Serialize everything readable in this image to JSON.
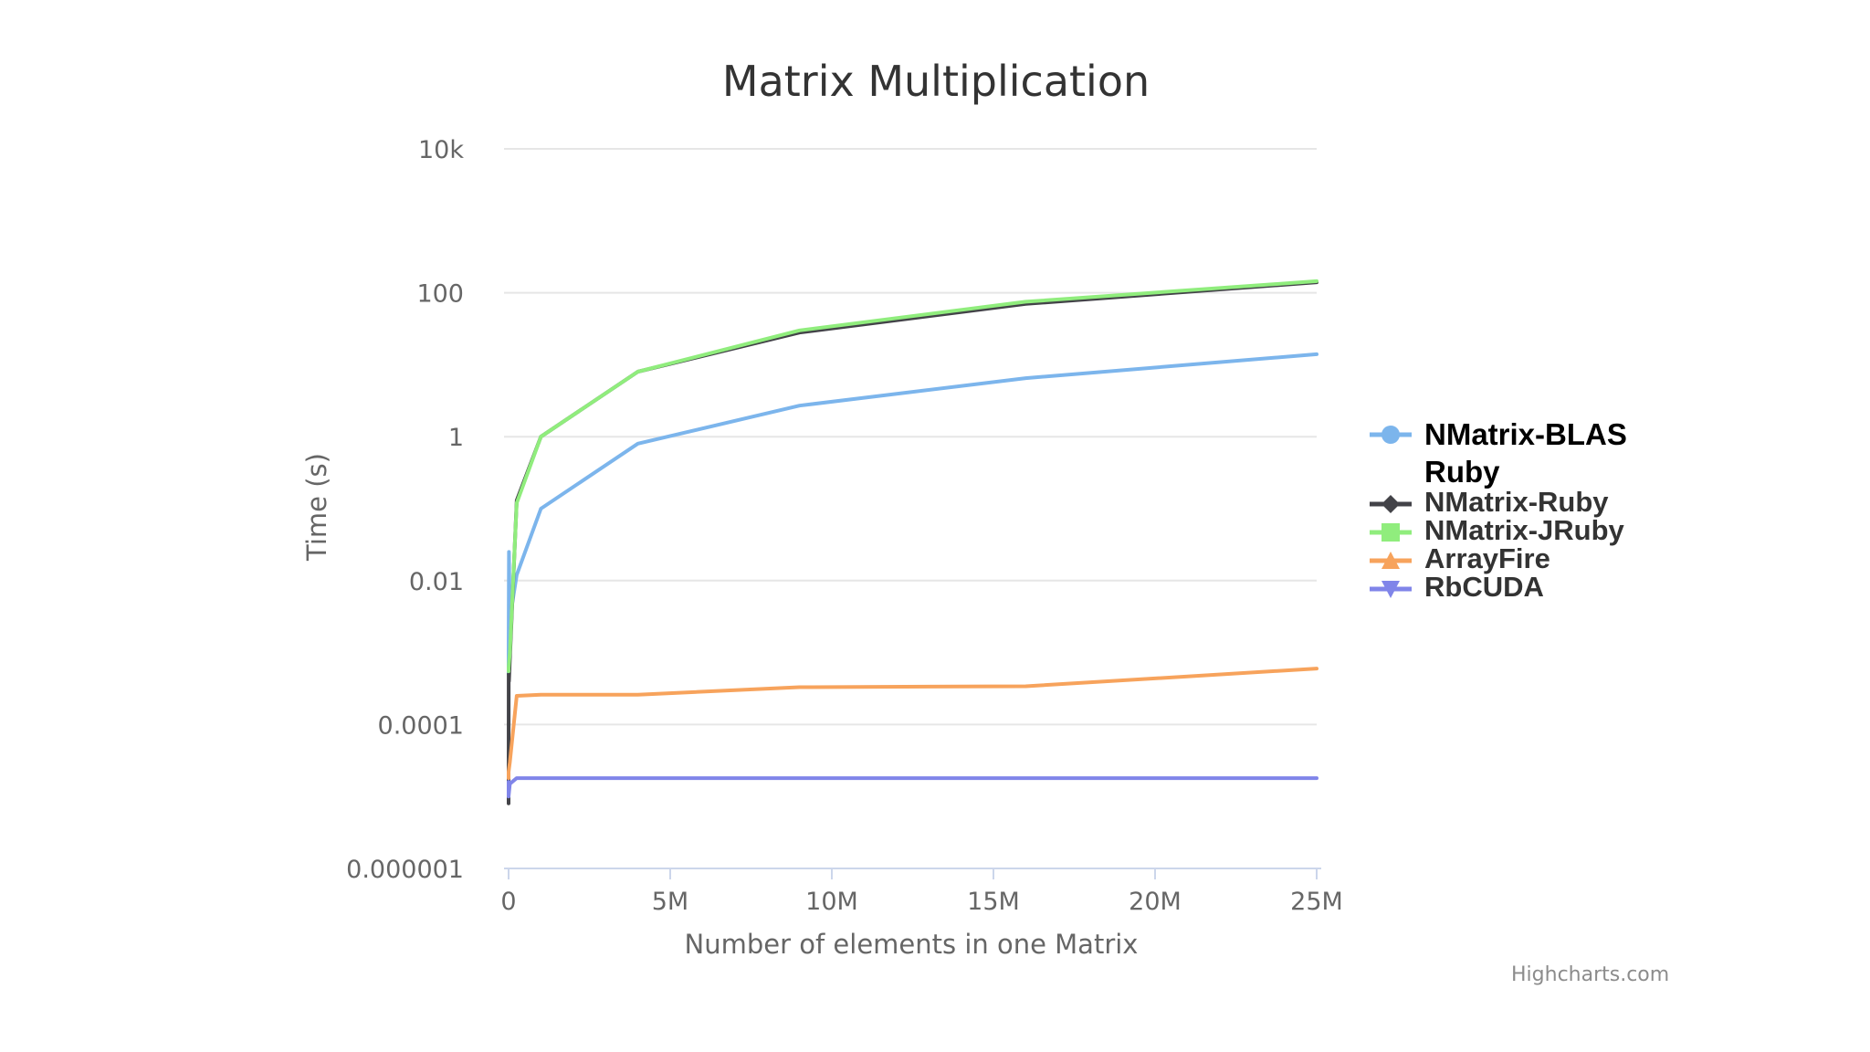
{
  "chart_data": {
    "type": "line",
    "title": "Matrix Multiplication",
    "xlabel": "Number of elements in one Matrix",
    "ylabel": "Time (s)",
    "yscale": "log",
    "ylim": [
      1e-06,
      10000
    ],
    "xlim": [
      0,
      25000000
    ],
    "y_ticks": [
      {
        "value": 10000,
        "label": "10k"
      },
      {
        "value": 100,
        "label": "100"
      },
      {
        "value": 1,
        "label": "1"
      },
      {
        "value": 0.01,
        "label": "0.01"
      },
      {
        "value": 0.0001,
        "label": "0.0001"
      },
      {
        "value": 1e-06,
        "label": "0.000001"
      }
    ],
    "x_ticks": [
      {
        "value": 0,
        "label": "0"
      },
      {
        "value": 5000000,
        "label": "5M"
      },
      {
        "value": 10000000,
        "label": "10M"
      },
      {
        "value": 15000000,
        "label": "15M"
      },
      {
        "value": 20000000,
        "label": "20M"
      },
      {
        "value": 25000000,
        "label": "25M"
      }
    ],
    "grid": true,
    "legend_position": "right",
    "series": [
      {
        "name": "NMatrix-BLAS Ruby",
        "color": "#7cb5ec",
        "marker": "circle",
        "points": [
          [
            4,
            0.0005
          ],
          [
            100,
            0.001
          ],
          [
            10000,
            0.025
          ],
          [
            40000,
            0.003
          ],
          [
            250000,
            0.012
          ],
          [
            1000000,
            0.1
          ],
          [
            4000000,
            0.8
          ],
          [
            9000000,
            2.7
          ],
          [
            16000000,
            6.5
          ],
          [
            25000000,
            14
          ]
        ]
      },
      {
        "name": "NMatrix-Ruby",
        "color": "#434348",
        "marker": "diamond",
        "points": [
          [
            4,
            8e-06
          ],
          [
            100,
            1e-05
          ],
          [
            2500,
            0.0005
          ],
          [
            10000,
            0.0004
          ],
          [
            40000,
            0.0008
          ],
          [
            250000,
            0.13
          ],
          [
            1000000,
            1.0
          ],
          [
            4000000,
            8
          ],
          [
            9000000,
            28
          ],
          [
            16000000,
            70
          ],
          [
            25000000,
            140
          ]
        ]
      },
      {
        "name": "NMatrix-JRuby",
        "color": "#90ed7d",
        "marker": "square",
        "points": [
          [
            4,
            0.00055
          ],
          [
            100,
            0.0006
          ],
          [
            10000,
            0.0007
          ],
          [
            40000,
            0.001
          ],
          [
            250000,
            0.12
          ],
          [
            1000000,
            1.0
          ],
          [
            4000000,
            8
          ],
          [
            9000000,
            30
          ],
          [
            16000000,
            75
          ],
          [
            25000000,
            145
          ]
        ]
      },
      {
        "name": "ArrayFire",
        "color": "#f7a35c",
        "marker": "triangle",
        "points": [
          [
            4,
            1.8e-05
          ],
          [
            100,
            2.2e-05
          ],
          [
            40000,
            3e-05
          ],
          [
            250000,
            0.00025
          ],
          [
            1000000,
            0.00026
          ],
          [
            4000000,
            0.00026
          ],
          [
            9000000,
            0.00033
          ],
          [
            16000000,
            0.00034
          ],
          [
            25000000,
            0.0006
          ]
        ]
      },
      {
        "name": "RbCUDA",
        "color": "#8085e9",
        "marker": "triangle-down",
        "points": [
          [
            4,
            1.6e-05
          ],
          [
            100,
            1e-05
          ],
          [
            40000,
            1.5e-05
          ],
          [
            250000,
            1.8e-05
          ],
          [
            1000000,
            1.8e-05
          ],
          [
            4000000,
            1.8e-05
          ],
          [
            9000000,
            1.8e-05
          ],
          [
            16000000,
            1.8e-05
          ],
          [
            25000000,
            1.8e-05
          ]
        ]
      }
    ],
    "legend_labels": [
      "NMatrix-BLAS Ruby",
      "NMatrix-Ruby",
      "NMatrix-JRuby",
      "ArrayFire",
      "RbCUDA"
    ]
  },
  "legend": {
    "first_line": "NMatrix-BLAS",
    "first_line_cont": "Ruby",
    "items": [
      "NMatrix-Ruby",
      "NMatrix-JRuby",
      "ArrayFire",
      "RbCUDA"
    ]
  },
  "credit": "Highcharts.com",
  "colors": {
    "grid": "#e6e6e6",
    "axis_text": "#666666",
    "title": "#333333"
  }
}
